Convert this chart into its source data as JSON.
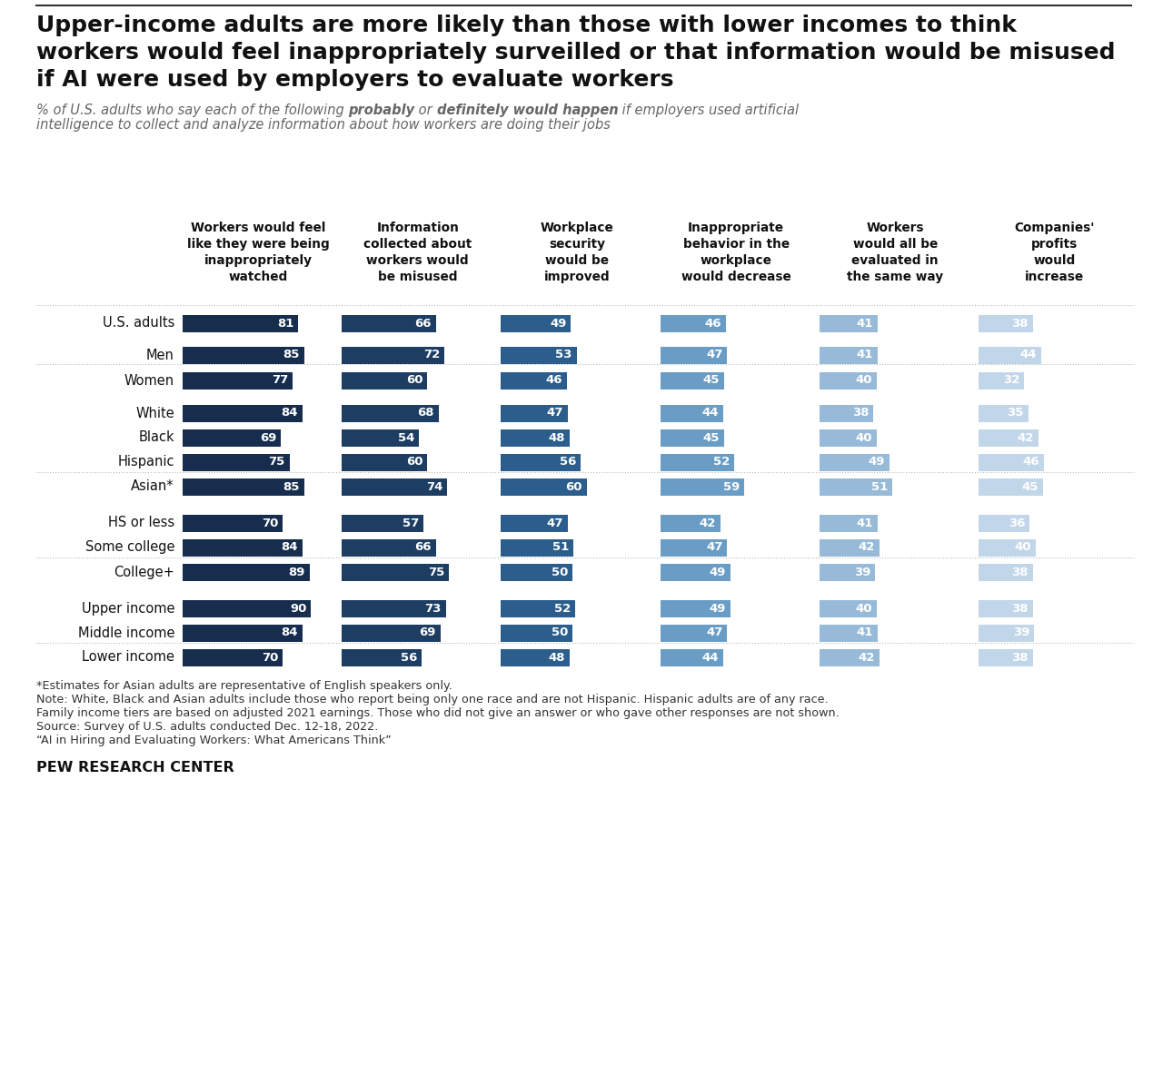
{
  "title_lines": [
    "Upper-income adults are more likely than those with lower incomes to think",
    "workers would feel inappropriately surveilled or that information would be misused",
    "if AI were used by employers to evaluate workers"
  ],
  "col_headers": [
    "Workers would feel\nlike they were being\ninappropriately\nwatched",
    "Information\ncollected about\nworkers would\nbe misused",
    "Workplace\nsecurity\nwould be\nimproved",
    "Inappropriate\nbehavior in the\nworkplace\nwould decrease",
    "Workers\nwould all be\nevaluated in\nthe same way",
    "Companies'\nprofits\nwould\nincrease"
  ],
  "col_colors": [
    "#162d4e",
    "#1d3d63",
    "#2b5e8c",
    "#6a9dc5",
    "#97bad8",
    "#c2d6e9"
  ],
  "rows": [
    {
      "label": "U.S. adults",
      "values": [
        81,
        66,
        49,
        46,
        41,
        38
      ],
      "group": "us"
    },
    {
      "label": "Men",
      "values": [
        85,
        72,
        53,
        47,
        41,
        44
      ],
      "group": "gender"
    },
    {
      "label": "Women",
      "values": [
        77,
        60,
        46,
        45,
        40,
        32
      ],
      "group": "gender"
    },
    {
      "label": "White",
      "values": [
        84,
        68,
        47,
        44,
        38,
        35
      ],
      "group": "race"
    },
    {
      "label": "Black",
      "values": [
        69,
        54,
        48,
        45,
        40,
        42
      ],
      "group": "race"
    },
    {
      "label": "Hispanic",
      "values": [
        75,
        60,
        56,
        52,
        49,
        46
      ],
      "group": "race"
    },
    {
      "label": "Asian*",
      "values": [
        85,
        74,
        60,
        59,
        51,
        45
      ],
      "group": "race"
    },
    {
      "label": "HS or less",
      "values": [
        70,
        57,
        47,
        42,
        41,
        36
      ],
      "group": "edu"
    },
    {
      "label": "Some college",
      "values": [
        84,
        66,
        51,
        47,
        42,
        40
      ],
      "group": "edu"
    },
    {
      "label": "College+",
      "values": [
        89,
        75,
        50,
        49,
        39,
        38
      ],
      "group": "edu"
    },
    {
      "label": "Upper income",
      "values": [
        90,
        73,
        52,
        49,
        40,
        38
      ],
      "group": "income"
    },
    {
      "label": "Middle income",
      "values": [
        84,
        69,
        50,
        47,
        41,
        39
      ],
      "group": "income"
    },
    {
      "label": "Lower income",
      "values": [
        70,
        56,
        48,
        44,
        42,
        38
      ],
      "group": "income"
    }
  ],
  "footnotes": [
    "*Estimates for Asian adults are representative of English speakers only.",
    "Note: White, Black and Asian adults include those who report being only one race and are not Hispanic. Hispanic adults are of any race.",
    "Family income tiers are based on adjusted 2021 earnings. Those who did not give an answer or who gave other responses are not shown.",
    "Source: Survey of U.S. adults conducted Dec. 12-18, 2022.",
    "“AI in Hiring and Evaluating Workers: What Americans Think”"
  ],
  "brand": "PEW RESEARCH CENTER",
  "bg_color": "#ffffff"
}
